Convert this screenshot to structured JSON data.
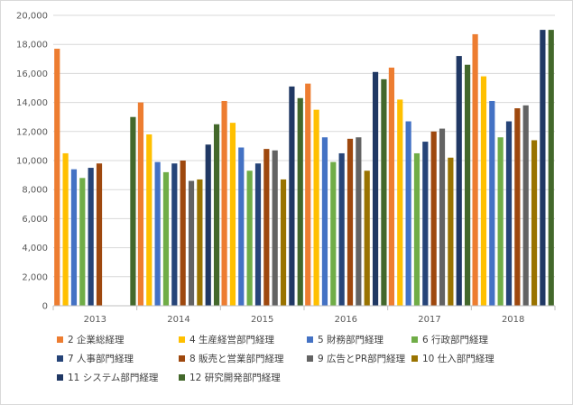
{
  "chart_data": {
    "type": "bar",
    "categories": [
      "2013",
      "2014",
      "2015",
      "2016",
      "2017",
      "2018"
    ],
    "ylim": [
      0,
      20000
    ],
    "yticks": [
      "0",
      "2,000",
      "4,000",
      "6,000",
      "8,000",
      "10,000",
      "12,000",
      "14,000",
      "16,000",
      "18,000",
      "20,000"
    ],
    "grid": true,
    "legend_position": "bottom",
    "series": [
      {
        "name": "2 企業総経理",
        "color": "#ed7d31",
        "values": [
          17700,
          14000,
          14100,
          15300,
          16400,
          18700
        ]
      },
      {
        "name": "4 生産経営部門経理",
        "color": "#ffc000",
        "values": [
          10500,
          11800,
          12600,
          13500,
          14200,
          15800
        ]
      },
      {
        "name": "5 財務部門経理",
        "color": "#4472c4",
        "values": [
          9400,
          9900,
          10900,
          11600,
          12700,
          14100
        ]
      },
      {
        "name": "6 行政部門経理",
        "color": "#70ad47",
        "values": [
          8800,
          9200,
          9300,
          9900,
          10500,
          11600
        ]
      },
      {
        "name": "7 人事部門経理",
        "color": "#264478",
        "values": [
          9500,
          9800,
          9800,
          10500,
          11300,
          12700
        ]
      },
      {
        "name": "8 販売と営業部門経理",
        "color": "#9e480e",
        "values": [
          9800,
          10000,
          10800,
          11500,
          12000,
          13600
        ]
      },
      {
        "name": "9 広告とPR部門経理",
        "color": "#636363",
        "values": [
          null,
          8600,
          10700,
          11600,
          12200,
          13800
        ]
      },
      {
        "name": "10 仕入部門経理",
        "color": "#997300",
        "values": [
          null,
          8700,
          8700,
          9300,
          10200,
          11400
        ]
      },
      {
        "name": "11 システム部門経理",
        "color": "#203864",
        "values": [
          null,
          11100,
          15100,
          16100,
          17200,
          19000
        ]
      },
      {
        "name": "12 研究開発部門経理",
        "color": "#43682b",
        "values": [
          13000,
          12500,
          14300,
          15600,
          16600,
          19000
        ]
      }
    ]
  }
}
